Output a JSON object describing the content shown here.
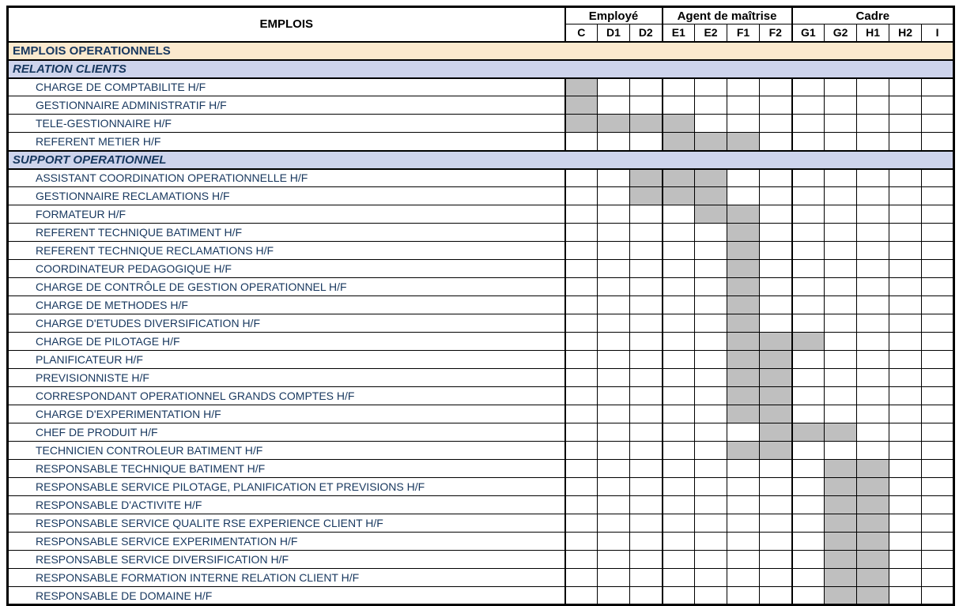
{
  "document": {
    "header": {
      "emplois_label": "EMPLOIS",
      "groups": [
        {
          "label": "Employé",
          "columns": [
            "C",
            "D1",
            "D2"
          ]
        },
        {
          "label": "Agent de maîtrise",
          "columns": [
            "E1",
            "E2",
            "F1",
            "F2"
          ]
        },
        {
          "label": "Cadre",
          "columns": [
            "G1",
            "G2",
            "H1",
            "H2",
            "I"
          ]
        }
      ]
    },
    "colors": {
      "section_bg": "#FBE9CE",
      "subsection_bg": "#CED4EC",
      "grade_fill": "#BFBFBF",
      "text_navy": "#17375E",
      "border": "#000000"
    },
    "sections": [
      {
        "label": "EMPLOIS OPERATIONNELS",
        "subsections": [
          {
            "label": "RELATION CLIENTS",
            "jobs": [
              {
                "name": "CHARGE DE COMPTABILITE H/F",
                "grades": [
                  "C"
                ]
              },
              {
                "name": "GESTIONNAIRE ADMINISTRATIF H/F",
                "grades": [
                  "C"
                ]
              },
              {
                "name": "TELE-GESTIONNAIRE H/F",
                "grades": [
                  "C",
                  "D1",
                  "D2",
                  "E1"
                ]
              },
              {
                "name": "REFERENT METIER H/F",
                "grades": [
                  "E1",
                  "E2",
                  "F1"
                ]
              }
            ]
          },
          {
            "label": "SUPPORT OPERATIONNEL",
            "jobs": [
              {
                "name": "ASSISTANT COORDINATION OPERATIONNELLE H/F",
                "grades": [
                  "D2",
                  "E1",
                  "E2"
                ]
              },
              {
                "name": "GESTIONNAIRE RECLAMATIONS H/F",
                "grades": [
                  "D2",
                  "E1",
                  "E2"
                ]
              },
              {
                "name": "FORMATEUR H/F",
                "grades": [
                  "E2",
                  "F1"
                ]
              },
              {
                "name": "REFERENT TECHNIQUE BATIMENT H/F",
                "grades": [
                  "F1"
                ]
              },
              {
                "name": "REFERENT TECHNIQUE RECLAMATIONS H/F",
                "grades": [
                  "F1"
                ]
              },
              {
                "name": "COORDINATEUR PEDAGOGIQUE H/F",
                "grades": [
                  "F1"
                ]
              },
              {
                "name": "CHARGE DE CONTRÔLE DE GESTION OPERATIONNEL H/F",
                "grades": [
                  "F1"
                ]
              },
              {
                "name": "CHARGE DE METHODES H/F",
                "grades": [
                  "F1"
                ]
              },
              {
                "name": "CHARGE D'ETUDES DIVERSIFICATION H/F",
                "grades": [
                  "F1"
                ]
              },
              {
                "name": "CHARGE DE PILOTAGE H/F",
                "grades": [
                  "F1",
                  "F2",
                  "G1"
                ]
              },
              {
                "name": "PLANIFICATEUR H/F",
                "grades": [
                  "F1",
                  "F2"
                ]
              },
              {
                "name": "PREVISIONNISTE H/F",
                "grades": [
                  "F1",
                  "F2"
                ]
              },
              {
                "name": "CORRESPONDANT OPERATIONNEL GRANDS COMPTES H/F",
                "grades": [
                  "F1",
                  "F2"
                ]
              },
              {
                "name": "CHARGE D'EXPERIMENTATION H/F",
                "grades": [
                  "F1",
                  "F2"
                ]
              },
              {
                "name": "CHEF DE PRODUIT H/F",
                "grades": [
                  "F2",
                  "G1",
                  "G2"
                ]
              },
              {
                "name": "TECHNICIEN CONTROLEUR BATIMENT H/F",
                "grades": [
                  "F1",
                  "F2"
                ]
              },
              {
                "name": "RESPONSABLE TECHNIQUE BATIMENT H/F",
                "grades": [
                  "G2",
                  "H1"
                ]
              },
              {
                "name": "RESPONSABLE SERVICE PILOTAGE, PLANIFICATION ET PREVISIONS H/F",
                "grades": [
                  "G2",
                  "H1"
                ]
              },
              {
                "name": "RESPONSABLE D'ACTIVITE H/F",
                "grades": [
                  "G2",
                  "H1"
                ]
              },
              {
                "name": "RESPONSABLE SERVICE QUALITE RSE EXPERIENCE CLIENT H/F",
                "grades": [
                  "G2",
                  "H1"
                ]
              },
              {
                "name": "RESPONSABLE SERVICE EXPERIMENTATION H/F",
                "grades": [
                  "G2",
                  "H1"
                ]
              },
              {
                "name": "RESPONSABLE SERVICE DIVERSIFICATION H/F",
                "grades": [
                  "G2",
                  "H1"
                ]
              },
              {
                "name": "RESPONSABLE FORMATION INTERNE RELATION CLIENT H/F",
                "grades": [
                  "G2",
                  "H1"
                ]
              },
              {
                "name": "RESPONSABLE DE DOMAINE H/F",
                "grades": [
                  "G2",
                  "H1"
                ]
              }
            ]
          }
        ]
      }
    ]
  }
}
